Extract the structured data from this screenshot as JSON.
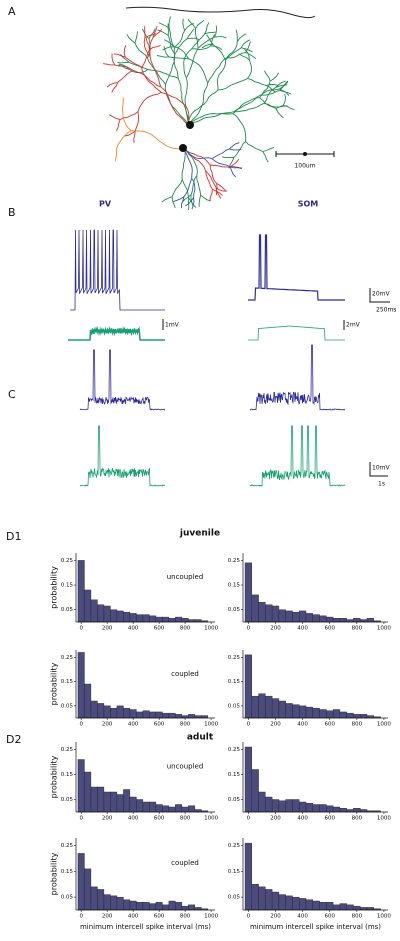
{
  "panel_labels": [
    "A",
    "B",
    "C",
    "D1",
    "D2"
  ],
  "panel_a": {
    "scale_bar": "100um"
  },
  "panel_b": {
    "columns": [
      "PV",
      "SOM"
    ],
    "scale_labels": [
      "1mV",
      "20mV",
      "250ms",
      "2mV"
    ]
  },
  "panel_c": {
    "scale_labels": [
      "10mV",
      "1s"
    ]
  },
  "group_titles": [
    "juvenile",
    "adult"
  ],
  "chart_data": [
    {
      "type": "histogram",
      "ylabel": "probability",
      "annotation": "uncoupled",
      "color": "#4b4b7e",
      "bins": [
        -25,
        25,
        75,
        125,
        175,
        225,
        275,
        325,
        375,
        425,
        475,
        525,
        575,
        625,
        675,
        725,
        775,
        825,
        875,
        925,
        975
      ],
      "values": [
        0.25,
        0.13,
        0.09,
        0.07,
        0.065,
        0.05,
        0.045,
        0.04,
        0.035,
        0.03,
        0.03,
        0.025,
        0.02,
        0.02,
        0.015,
        0.02,
        0.015,
        0.01,
        0.01,
        0.005
      ],
      "xlim": [
        -40,
        1030
      ],
      "ylim": [
        0,
        0.28
      ],
      "xticks": [
        0,
        200,
        400,
        600,
        800,
        1000
      ],
      "yticks": [
        0.05,
        0.15,
        0.25
      ]
    },
    {
      "type": "histogram",
      "color": "#4b4b7e",
      "bins": [
        -25,
        25,
        75,
        125,
        175,
        225,
        275,
        325,
        375,
        425,
        475,
        525,
        575,
        625,
        675,
        725,
        775,
        825,
        875,
        925,
        975
      ],
      "values": [
        0.24,
        0.11,
        0.08,
        0.07,
        0.065,
        0.05,
        0.045,
        0.04,
        0.045,
        0.035,
        0.03,
        0.025,
        0.02,
        0.015,
        0.015,
        0.01,
        0.015,
        0.01,
        0.015,
        0.005
      ],
      "xlim": [
        -40,
        1030
      ],
      "ylim": [
        0,
        0.28
      ],
      "xticks": [
        0,
        200,
        400,
        600,
        800,
        1000
      ],
      "yticks": [
        0.05,
        0.15,
        0.25
      ]
    },
    {
      "type": "histogram",
      "ylabel": "probability",
      "annotation": "coupled",
      "color": "#4b4b7e",
      "bins": [
        -25,
        25,
        75,
        125,
        175,
        225,
        275,
        325,
        375,
        425,
        475,
        525,
        575,
        625,
        675,
        725,
        775,
        825,
        875,
        925,
        975
      ],
      "values": [
        0.27,
        0.14,
        0.07,
        0.06,
        0.05,
        0.04,
        0.05,
        0.04,
        0.035,
        0.025,
        0.03,
        0.025,
        0.025,
        0.02,
        0.02,
        0.015,
        0.01,
        0.015,
        0.01,
        0.01
      ],
      "xlim": [
        -40,
        1030
      ],
      "ylim": [
        0,
        0.28
      ],
      "xticks": [
        0,
        200,
        400,
        600,
        800,
        1000
      ],
      "yticks": [
        0.05,
        0.15,
        0.25
      ]
    },
    {
      "type": "histogram",
      "color": "#4b4b7e",
      "bins": [
        -25,
        25,
        75,
        125,
        175,
        225,
        275,
        325,
        375,
        425,
        475,
        525,
        575,
        625,
        675,
        725,
        775,
        825,
        875,
        925,
        975
      ],
      "values": [
        0.26,
        0.09,
        0.1,
        0.09,
        0.08,
        0.07,
        0.06,
        0.055,
        0.05,
        0.045,
        0.04,
        0.035,
        0.03,
        0.035,
        0.025,
        0.02,
        0.015,
        0.015,
        0.01,
        0.005
      ],
      "xlim": [
        -40,
        1030
      ],
      "ylim": [
        0,
        0.28
      ],
      "xticks": [
        0,
        200,
        400,
        600,
        800,
        1000
      ],
      "yticks": [
        0.05,
        0.15,
        0.25
      ]
    },
    {
      "type": "histogram",
      "ylabel": "probability",
      "annotation": "uncoupled",
      "color": "#4b4b7e",
      "bins": [
        -25,
        25,
        75,
        125,
        175,
        225,
        275,
        325,
        375,
        425,
        475,
        525,
        575,
        625,
        675,
        725,
        775,
        825,
        875,
        925,
        975
      ],
      "values": [
        0.21,
        0.16,
        0.1,
        0.1,
        0.08,
        0.08,
        0.07,
        0.09,
        0.06,
        0.05,
        0.04,
        0.04,
        0.03,
        0.025,
        0.02,
        0.03,
        0.02,
        0.025,
        0.01,
        0.005
      ],
      "xlim": [
        -40,
        1030
      ],
      "ylim": [
        0,
        0.28
      ],
      "xticks": [
        0,
        200,
        400,
        600,
        800,
        1000
      ],
      "yticks": [
        0.05,
        0.15,
        0.25
      ]
    },
    {
      "type": "histogram",
      "color": "#4b4b7e",
      "bins": [
        -25,
        25,
        75,
        125,
        175,
        225,
        275,
        325,
        375,
        425,
        475,
        525,
        575,
        625,
        675,
        725,
        775,
        825,
        875,
        925,
        975
      ],
      "values": [
        0.26,
        0.17,
        0.08,
        0.06,
        0.05,
        0.045,
        0.05,
        0.05,
        0.04,
        0.035,
        0.03,
        0.03,
        0.025,
        0.02,
        0.015,
        0.01,
        0.015,
        0.01,
        0.005,
        0.005
      ],
      "xlim": [
        -40,
        1030
      ],
      "ylim": [
        0,
        0.28
      ],
      "xticks": [
        0,
        200,
        400,
        600,
        800,
        1000
      ],
      "yticks": [
        0.05,
        0.15,
        0.25
      ]
    },
    {
      "type": "histogram",
      "ylabel": "probability",
      "annotation": "coupled",
      "xlabel": "minimum intercell spike interval (ms)",
      "color": "#4b4b7e",
      "bins": [
        -25,
        25,
        75,
        125,
        175,
        225,
        275,
        325,
        375,
        425,
        475,
        525,
        575,
        625,
        675,
        725,
        775,
        825,
        875,
        925,
        975
      ],
      "values": [
        0.22,
        0.16,
        0.09,
        0.08,
        0.06,
        0.055,
        0.05,
        0.04,
        0.035,
        0.03,
        0.03,
        0.025,
        0.03,
        0.02,
        0.035,
        0.03,
        0.015,
        0.02,
        0.01,
        0.005
      ],
      "xlim": [
        -40,
        1030
      ],
      "ylim": [
        0,
        0.28
      ],
      "xticks": [
        0,
        200,
        400,
        600,
        800,
        1000
      ],
      "yticks": [
        0.05,
        0.15,
        0.25
      ]
    },
    {
      "type": "histogram",
      "xlabel": "minimum intercell spike interval (ms)",
      "color": "#4b4b7e",
      "bins": [
        -25,
        25,
        75,
        125,
        175,
        225,
        275,
        325,
        375,
        425,
        475,
        525,
        575,
        625,
        675,
        725,
        775,
        825,
        875,
        925,
        975
      ],
      "values": [
        0.26,
        0.1,
        0.09,
        0.08,
        0.07,
        0.06,
        0.055,
        0.05,
        0.045,
        0.04,
        0.035,
        0.03,
        0.03,
        0.02,
        0.025,
        0.02,
        0.015,
        0.01,
        0.01,
        0.005
      ],
      "xlim": [
        -40,
        1030
      ],
      "ylim": [
        0,
        0.28
      ],
      "xticks": [
        0,
        200,
        400,
        600,
        800,
        1000
      ],
      "yticks": [
        0.05,
        0.15,
        0.25
      ]
    }
  ]
}
